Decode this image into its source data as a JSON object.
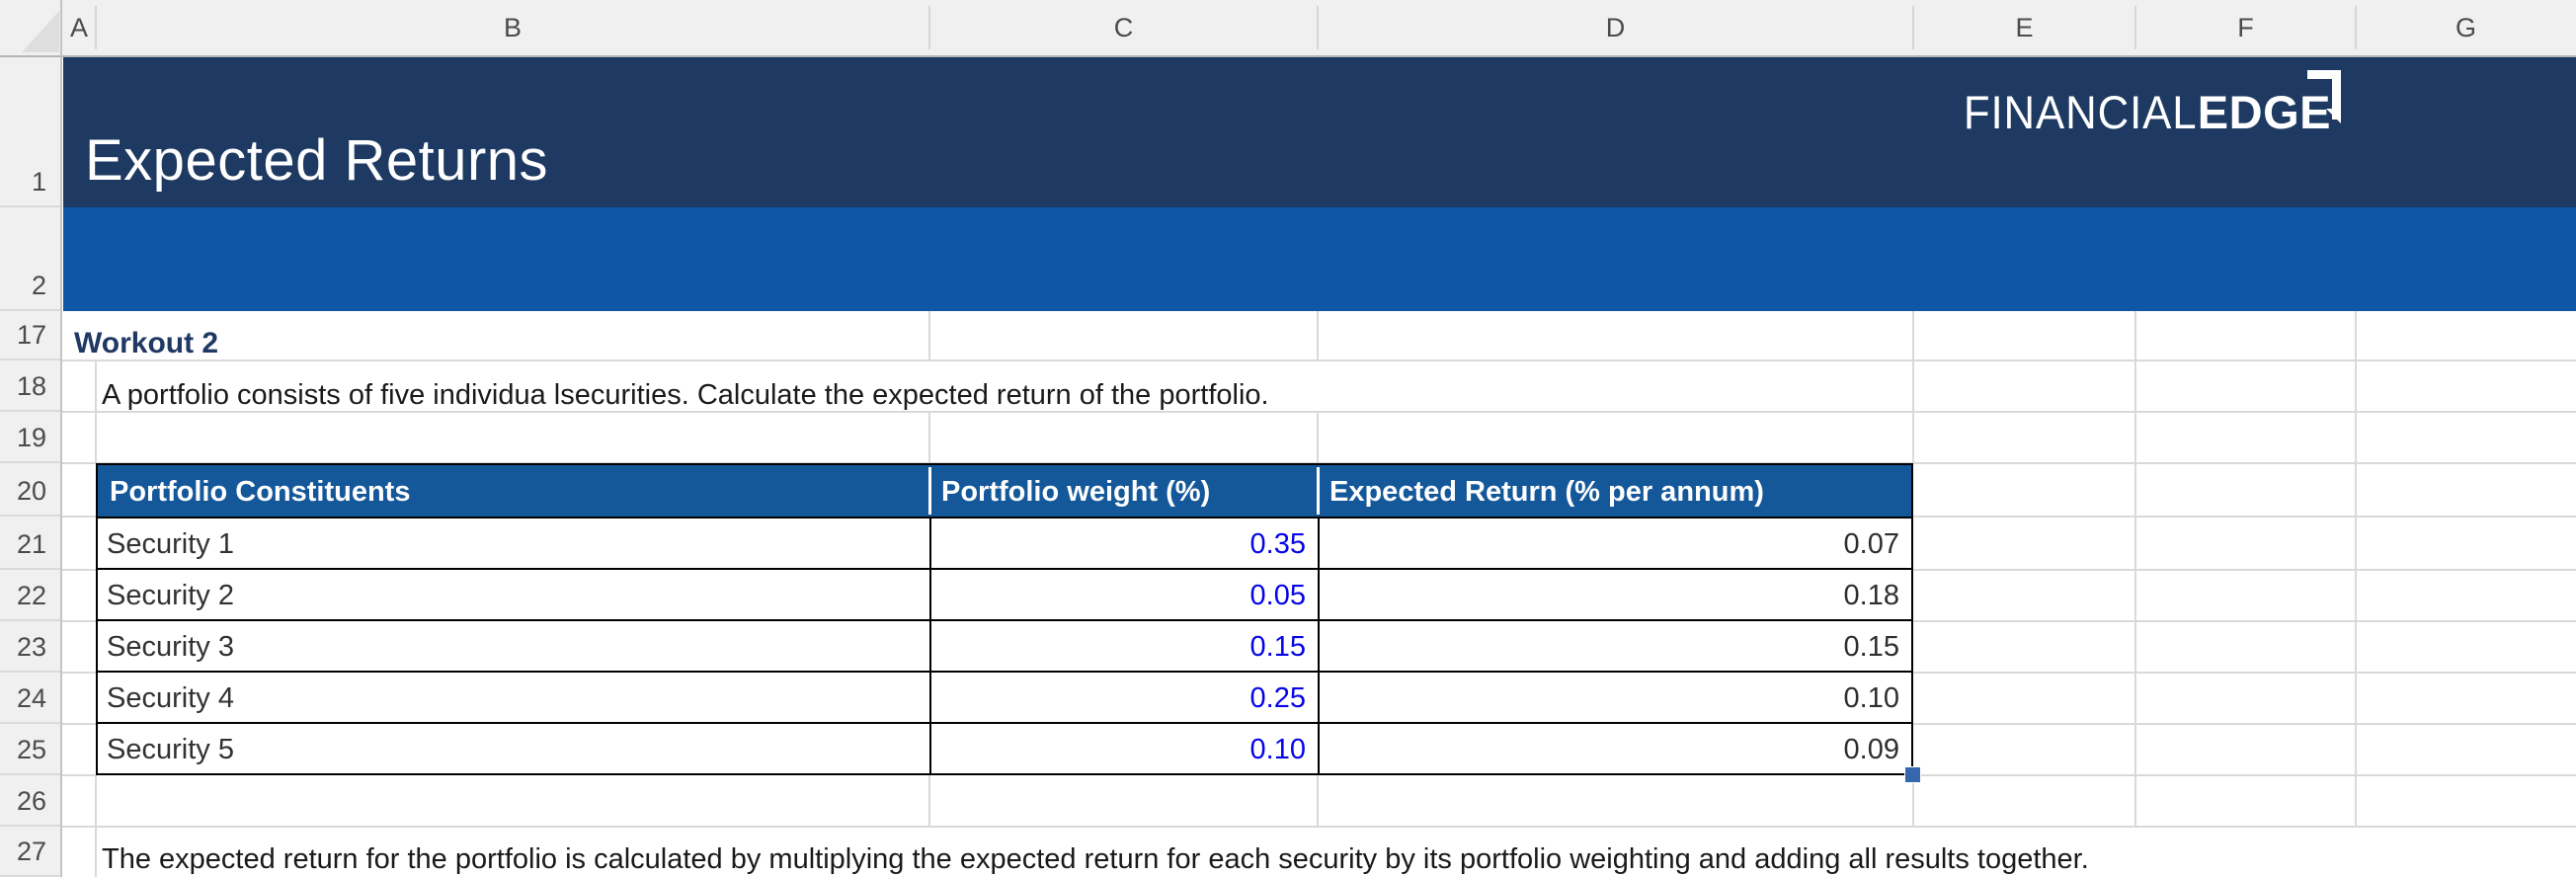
{
  "banner": {
    "title": "Expected Returns",
    "logo_text_thin": "FINANCIAL",
    "logo_text_bold": "EDGE"
  },
  "grid": {
    "column_letters": [
      "A",
      "B",
      "C",
      "D",
      "E",
      "F",
      "G"
    ],
    "row_numbers": [
      "1",
      "2",
      "17",
      "18",
      "19",
      "20",
      "21",
      "22",
      "23",
      "24",
      "25",
      "26",
      "27"
    ]
  },
  "content": {
    "workout_label": "Workout 2",
    "instruction": "A portfolio consists of five individua lsecurities. Calculate the expected return of the portfolio.",
    "note": "The expected return for the portfolio is calculated by multiplying the expected return for each security by its portfolio weighting and adding all results together."
  },
  "table": {
    "headers": [
      "Portfolio Constituents",
      "Portfolio weight (%)",
      "Expected Return (% per annum)"
    ],
    "rows": [
      {
        "name": "Security 1",
        "weight": "0.35",
        "expected_return": "0.07"
      },
      {
        "name": "Security 2",
        "weight": "0.05",
        "expected_return": "0.18"
      },
      {
        "name": "Security 3",
        "weight": "0.15",
        "expected_return": "0.15"
      },
      {
        "name": "Security 4",
        "weight": "0.25",
        "expected_return": "0.10"
      },
      {
        "name": "Security 5",
        "weight": "0.10",
        "expected_return": "0.09"
      }
    ]
  },
  "colors": {
    "banner_dark": "#1E3A62",
    "banner_blue": "#0D57A6",
    "thead_blue": "#14589A",
    "workout_navy": "#1F3864",
    "input_blue": "#0505E8",
    "fill_handle": "#3566AE"
  }
}
